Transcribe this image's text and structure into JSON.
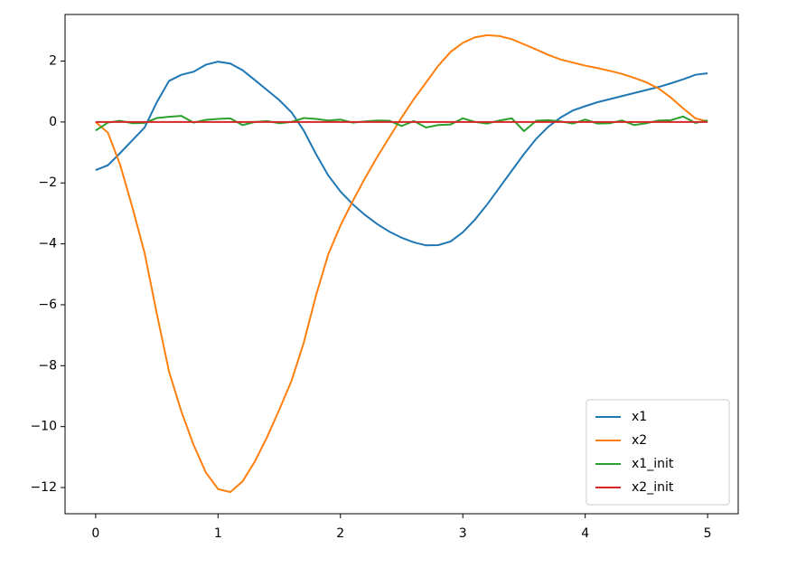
{
  "chart_data": {
    "type": "line",
    "x": [
      0,
      0.1,
      0.2,
      0.3,
      0.4,
      0.5,
      0.6,
      0.7,
      0.8,
      0.9,
      1.0,
      1.1,
      1.2,
      1.3,
      1.4,
      1.5,
      1.6,
      1.7,
      1.8,
      1.9,
      2.0,
      2.1,
      2.2,
      2.3,
      2.4,
      2.5,
      2.6,
      2.7,
      2.8,
      2.9,
      3.0,
      3.1,
      3.2,
      3.3,
      3.4,
      3.5,
      3.6,
      3.7,
      3.8,
      3.9,
      4.0,
      4.1,
      4.2,
      4.3,
      4.4,
      4.5,
      4.6,
      4.7,
      4.8,
      4.9,
      5.0
    ],
    "series": [
      {
        "name": "x1",
        "color": "#1f77b4",
        "values": [
          -1.58,
          -1.42,
          -1.02,
          -0.6,
          -0.18,
          0.65,
          1.35,
          1.55,
          1.65,
          1.88,
          1.98,
          1.92,
          1.7,
          1.38,
          1.05,
          0.72,
          0.32,
          -0.28,
          -1.05,
          -1.75,
          -2.28,
          -2.7,
          -3.05,
          -3.35,
          -3.6,
          -3.8,
          -3.95,
          -4.05,
          -4.04,
          -3.92,
          -3.62,
          -3.2,
          -2.7,
          -2.15,
          -1.6,
          -1.05,
          -0.55,
          -0.15,
          0.15,
          0.38,
          0.52,
          0.65,
          0.75,
          0.85,
          0.95,
          1.05,
          1.15,
          1.27,
          1.4,
          1.55,
          1.6
        ]
      },
      {
        "name": "x2",
        "color": "#ff7f0e",
        "values": [
          0,
          -0.35,
          -1.4,
          -2.8,
          -4.3,
          -6.3,
          -8.2,
          -9.5,
          -10.6,
          -11.5,
          -12.05,
          -12.15,
          -11.8,
          -11.15,
          -10.35,
          -9.45,
          -8.5,
          -7.25,
          -5.7,
          -4.35,
          -3.4,
          -2.6,
          -1.85,
          -1.15,
          -0.5,
          0.15,
          0.75,
          1.3,
          1.85,
          2.3,
          2.6,
          2.78,
          2.85,
          2.82,
          2.72,
          2.55,
          2.38,
          2.2,
          2.05,
          1.95,
          1.85,
          1.77,
          1.68,
          1.58,
          1.45,
          1.3,
          1.1,
          0.8,
          0.45,
          0.12,
          0.02
        ]
      },
      {
        "name": "x1_init",
        "color": "#2ca02c",
        "values": [
          -0.28,
          -0.02,
          0.04,
          -0.04,
          -0.03,
          0.13,
          0.17,
          0.2,
          -0.02,
          0.07,
          0.1,
          0.12,
          -0.1,
          0.0,
          0.03,
          -0.04,
          0.0,
          0.13,
          0.1,
          0.05,
          0.08,
          -0.02,
          0.02,
          0.05,
          0.04,
          -0.13,
          0.03,
          -0.18,
          -0.1,
          -0.08,
          0.12,
          0.0,
          -0.05,
          0.05,
          0.12,
          -0.3,
          0.04,
          0.06,
          0.02,
          -0.05,
          0.08,
          -0.05,
          -0.04,
          0.05,
          -0.1,
          -0.04,
          0.05,
          0.06,
          0.18,
          -0.03,
          0.05
        ]
      },
      {
        "name": "x2_init",
        "color": "#d62728",
        "values": [
          0,
          0,
          0,
          0,
          0,
          0,
          0,
          0,
          0,
          0,
          0,
          0,
          0,
          0,
          0,
          0,
          0,
          0,
          0,
          0,
          0,
          0,
          0,
          0,
          0,
          0,
          0,
          0,
          0,
          0,
          0,
          0,
          0,
          0,
          0,
          0,
          0,
          0,
          0,
          0,
          0,
          0,
          0,
          0,
          0,
          0,
          0,
          0,
          0,
          0,
          0
        ]
      }
    ],
    "xlim": [
      -0.25,
      5.25
    ],
    "ylim": [
      -12.86,
      3.53
    ],
    "xticks": [
      0,
      1,
      2,
      3,
      4,
      5
    ],
    "yticks": [
      {
        "value": -12,
        "label": "−12"
      },
      {
        "value": -10,
        "label": "−10"
      },
      {
        "value": -8,
        "label": "−8"
      },
      {
        "value": -6,
        "label": "−6"
      },
      {
        "value": -4,
        "label": "−4"
      },
      {
        "value": -2,
        "label": "−2"
      },
      0,
      2
    ],
    "legend": "lower right",
    "grid": false
  }
}
